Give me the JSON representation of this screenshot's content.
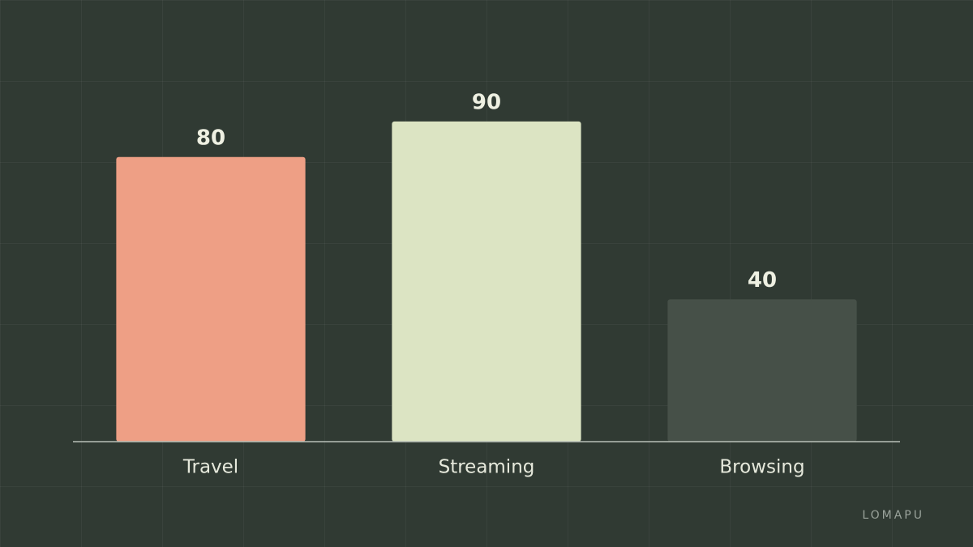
{
  "chart_data": {
    "type": "bar",
    "categories": [
      "Travel",
      "Streaming",
      "Browsing"
    ],
    "values": [
      80,
      90,
      40
    ],
    "colors": [
      "#ee9f85",
      "#dce4c3",
      "#465048"
    ],
    "ylim": [
      0,
      100
    ],
    "watermark": "LOMAPU"
  }
}
